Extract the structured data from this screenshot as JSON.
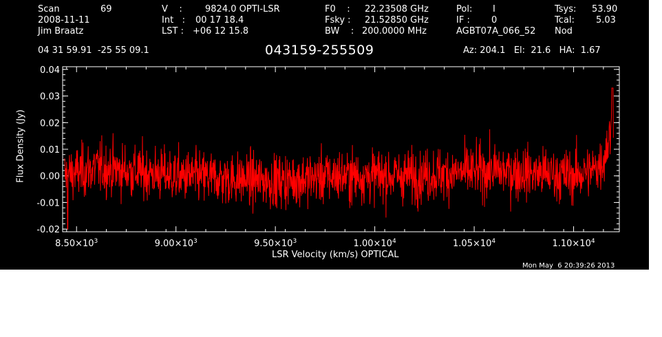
{
  "header": {
    "scan_label": "Scan",
    "scan_value": "69",
    "date": "2008-11-11",
    "observer": "Jim Braatz",
    "coords": "04 31 59.91  -25 55 09.1",
    "v_label": "V    :",
    "v_value": "9824.0 OPTI-LSR",
    "int_label": "Int   :",
    "int_value": "00 17 18.4",
    "lst_label": "LST :",
    "lst_value": "+06 12 15.8",
    "source": "043159-255509",
    "f0_label": "F0    :",
    "f0_value": "22.23508 GHz",
    "fsky_label": "Fsky :",
    "fsky_value": "21.52850 GHz",
    "bw_label": "BW    :",
    "bw_value": "200.0000 MHz",
    "pol_label": "Pol:",
    "pol_value": "I",
    "if_label": "IF :",
    "if_value": "0",
    "project": "AGBT07A_066_52",
    "tsys_label": "Tsys:",
    "tsys_value": "53.90",
    "tcal_label": "Tcal:",
    "tcal_value": "5.03",
    "mode": "Nod",
    "az_el_ha": "Az: 204.1   El:  21.6   HA:  1.67",
    "timestamp": "Mon May  6 20:39:26 2013"
  },
  "chart_data": {
    "type": "line",
    "xlabel": "LSR Velocity (km/s) OPTICAL",
    "ylabel": "Flux Density (Jy)",
    "xlim": [
      8430,
      11230
    ],
    "ylim": [
      -0.021,
      0.041
    ],
    "x_ticks": [
      {
        "value": 8500,
        "mant": "8.50",
        "exp": "3"
      },
      {
        "value": 9000,
        "mant": "9.00",
        "exp": "3"
      },
      {
        "value": 9500,
        "mant": "9.50",
        "exp": "3"
      },
      {
        "value": 10000,
        "mant": "1.00",
        "exp": "4"
      },
      {
        "value": 10500,
        "mant": "1.05",
        "exp": "4"
      },
      {
        "value": 11000,
        "mant": "1.10",
        "exp": "4"
      }
    ],
    "y_ticks": [
      {
        "value": -0.02,
        "label": "-0.02"
      },
      {
        "value": -0.01,
        "label": "-0.01"
      },
      {
        "value": 0.0,
        "label": "0.00"
      },
      {
        "value": 0.01,
        "label": "0.01"
      },
      {
        "value": 0.02,
        "label": "0.02"
      },
      {
        "value": 0.03,
        "label": "0.03"
      },
      {
        "value": 0.04,
        "label": "0.04"
      }
    ],
    "series": [
      {
        "color": "#ff0000",
        "x_start": 8440,
        "x_end": 11200,
        "baseline_trend": [
          [
            8440,
            0.0
          ],
          [
            8600,
            0.003
          ],
          [
            9000,
            0.0
          ],
          [
            9500,
            -0.002
          ],
          [
            9800,
            0.0
          ],
          [
            10200,
            0.0
          ],
          [
            10600,
            0.002
          ],
          [
            11000,
            0.0
          ],
          [
            11100,
            0.002
          ],
          [
            11150,
            0.006
          ],
          [
            11200,
            0.02
          ]
        ],
        "noise_rms": 0.0055,
        "peak": [
          11195,
          0.033
        ],
        "min": [
          8455,
          -0.02
        ]
      }
    ]
  }
}
